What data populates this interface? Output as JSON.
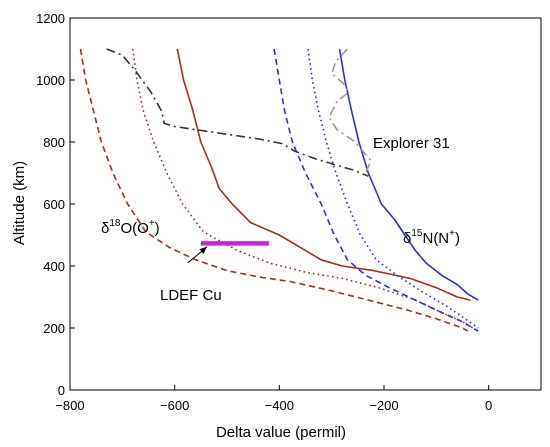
{
  "chart_data": {
    "type": "line",
    "xlabel": "Delta value (permil)",
    "ylabel": "Altitude (km)",
    "xlim": [
      -800,
      100
    ],
    "ylim": [
      0,
      1200
    ],
    "x_ticks": [
      -800,
      -600,
      -400,
      -200,
      0
    ],
    "y_ticks": [
      0,
      200,
      400,
      600,
      800,
      1000,
      1200
    ],
    "x_tick_labels": [
      "−800",
      "−600",
      "−400",
      "−200",
      "0"
    ],
    "y_tick_labels": [
      "0",
      "200",
      "400",
      "600",
      "800",
      "1000",
      "1200"
    ],
    "grid": false,
    "annotations": {
      "explorer": "Explorer 31",
      "o18": {
        "sup": "18",
        "main1": "O(O",
        "ion": "+",
        "close": ")",
        "prefix": "δ"
      },
      "n15": {
        "sup": "15",
        "main1": "N(N",
        "ion": "+",
        "close": ")",
        "prefix": "δ"
      },
      "ldef": "LDEF Cu"
    },
    "colors": {
      "brown": "#a0301e",
      "blue": "#2a33c8",
      "dashdot_dark": "#333333",
      "dashdot_light": "#999999",
      "ldef_bar": "#cc22dd"
    },
    "series": [
      {
        "color": "brown",
        "style": "solid",
        "points": [
          [
            -595,
            1100
          ],
          [
            -583,
            1000
          ],
          [
            -565,
            900
          ],
          [
            -550,
            800
          ],
          [
            -530,
            720
          ],
          [
            -515,
            650
          ],
          [
            -490,
            600
          ],
          [
            -455,
            540
          ],
          [
            -400,
            500
          ],
          [
            -360,
            460
          ],
          [
            -320,
            420
          ],
          [
            -280,
            400
          ],
          [
            -220,
            385
          ],
          [
            -150,
            360
          ],
          [
            -100,
            330
          ],
          [
            -60,
            300
          ],
          [
            -35,
            290
          ]
        ]
      },
      {
        "color": "brown",
        "style": "dashed",
        "points": [
          [
            -780,
            1100
          ],
          [
            -770,
            1000
          ],
          [
            -755,
            900
          ],
          [
            -740,
            800
          ],
          [
            -718,
            700
          ],
          [
            -690,
            600
          ],
          [
            -655,
            510
          ],
          [
            -610,
            460
          ],
          [
            -560,
            420
          ],
          [
            -500,
            385
          ],
          [
            -440,
            365
          ],
          [
            -380,
            350
          ],
          [
            -300,
            320
          ],
          [
            -230,
            290
          ],
          [
            -160,
            260
          ],
          [
            -100,
            230
          ],
          [
            -50,
            200
          ],
          [
            -40,
            190
          ]
        ]
      },
      {
        "color": "brown",
        "style": "dotted",
        "points": [
          [
            -680,
            1100
          ],
          [
            -672,
            1000
          ],
          [
            -660,
            900
          ],
          [
            -640,
            800
          ],
          [
            -615,
            700
          ],
          [
            -585,
            600
          ],
          [
            -545,
            510
          ],
          [
            -480,
            450
          ],
          [
            -420,
            410
          ],
          [
            -350,
            380
          ],
          [
            -280,
            360
          ],
          [
            -210,
            330
          ],
          [
            -140,
            290
          ],
          [
            -90,
            250
          ],
          [
            -50,
            220
          ],
          [
            -30,
            200
          ]
        ]
      },
      {
        "color": "blue",
        "style": "solid",
        "points": [
          [
            -285,
            1100
          ],
          [
            -275,
            1000
          ],
          [
            -262,
            900
          ],
          [
            -248,
            800
          ],
          [
            -230,
            700
          ],
          [
            -205,
            600
          ],
          [
            -180,
            550
          ],
          [
            -160,
            500
          ],
          [
            -140,
            450
          ],
          [
            -120,
            410
          ],
          [
            -90,
            370
          ],
          [
            -60,
            340
          ],
          [
            -40,
            310
          ],
          [
            -20,
            290
          ]
        ]
      },
      {
        "color": "blue",
        "style": "dashed",
        "points": [
          [
            -410,
            1100
          ],
          [
            -400,
            1000
          ],
          [
            -390,
            900
          ],
          [
            -375,
            800
          ],
          [
            -350,
            700
          ],
          [
            -320,
            600
          ],
          [
            -295,
            500
          ],
          [
            -270,
            420
          ],
          [
            -235,
            370
          ],
          [
            -190,
            330
          ],
          [
            -140,
            290
          ],
          [
            -90,
            250
          ],
          [
            -50,
            220
          ],
          [
            -20,
            190
          ]
        ]
      },
      {
        "color": "blue",
        "style": "dotted",
        "points": [
          [
            -345,
            1100
          ],
          [
            -337,
            1000
          ],
          [
            -325,
            900
          ],
          [
            -310,
            800
          ],
          [
            -292,
            700
          ],
          [
            -270,
            600
          ],
          [
            -245,
            500
          ],
          [
            -215,
            420
          ],
          [
            -175,
            370
          ],
          [
            -130,
            320
          ],
          [
            -80,
            270
          ],
          [
            -45,
            230
          ],
          [
            -20,
            200
          ]
        ]
      },
      {
        "color": "dashdot_dark",
        "style": "dashdot",
        "points": [
          [
            -730,
            1100
          ],
          [
            -700,
            1080
          ],
          [
            -675,
            1030
          ],
          [
            -645,
            960
          ],
          [
            -625,
            900
          ],
          [
            -620,
            860
          ],
          [
            -600,
            850
          ],
          [
            -560,
            840
          ],
          [
            -500,
            825
          ],
          [
            -440,
            810
          ],
          [
            -395,
            795
          ],
          [
            -370,
            770
          ],
          [
            -330,
            745
          ],
          [
            -290,
            725
          ],
          [
            -260,
            710
          ],
          [
            -230,
            690
          ]
        ]
      },
      {
        "color": "dashdot_light",
        "style": "dashdot",
        "points": [
          [
            -270,
            1100
          ],
          [
            -292,
            1060
          ],
          [
            -300,
            1020
          ],
          [
            -278,
            990
          ],
          [
            -268,
            960
          ],
          [
            -290,
            930
          ],
          [
            -305,
            880
          ],
          [
            -290,
            840
          ],
          [
            -255,
            800
          ],
          [
            -240,
            770
          ],
          [
            -225,
            740
          ],
          [
            -235,
            700
          ]
        ]
      }
    ],
    "ldef_segment": {
      "x1": -550,
      "x2": -420,
      "y": 473
    },
    "ldef_arrow": {
      "from": [
        -575,
        410
      ],
      "to": [
        -538,
        462
      ]
    }
  }
}
